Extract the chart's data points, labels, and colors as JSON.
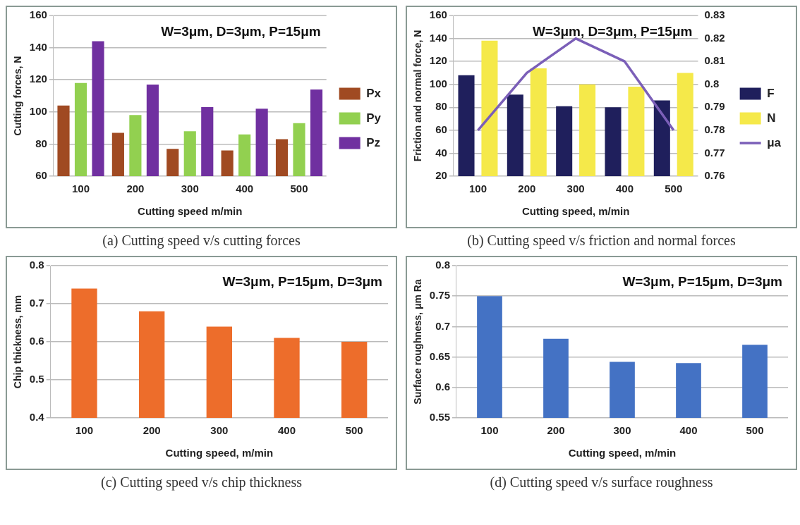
{
  "chart_data": [
    {
      "type": "bar",
      "xlabel": "Cutting speed m/min",
      "ylabel": "Cutting forces, N",
      "categories": [
        "100",
        "200",
        "300",
        "400",
        "500"
      ],
      "ylim": [
        60,
        160
      ],
      "yticks": [
        60,
        80,
        100,
        120,
        140,
        160
      ],
      "grid": "y",
      "legend": "right",
      "annotations": [
        "W=3μm, D=3μm, P=15μm",
        "(a) Cutting speed v/s cutting forces"
      ],
      "series": [
        {
          "name": "Px",
          "color": "#a04a22",
          "values": [
            104,
            87,
            77,
            76,
            83
          ]
        },
        {
          "name": "Py",
          "color": "#92d050",
          "values": [
            118,
            98,
            88,
            86,
            93
          ]
        },
        {
          "name": "Pz",
          "color": "#7030a0",
          "values": [
            144,
            117,
            103,
            102,
            114
          ]
        }
      ]
    },
    {
      "type": "bar",
      "xlabel": "Cutting speed, m/min",
      "ylabel": "Friction and normal force, N",
      "categories": [
        "100",
        "200",
        "300",
        "400",
        "500"
      ],
      "ylim": [
        20,
        160
      ],
      "yticks": [
        20,
        40,
        60,
        80,
        100,
        120,
        140,
        160
      ],
      "y2lim": [
        0.76,
        0.83
      ],
      "y2ticks": [
        0.76,
        0.77,
        0.78,
        0.79,
        0.8,
        0.81,
        0.82,
        0.83
      ],
      "grid": "y",
      "legend": "right",
      "annotations": [
        "W=3μm, D=3μm, P=15μm",
        "(b) Cutting speed v/s friction and normal forces"
      ],
      "series": [
        {
          "name": "F",
          "color": "#1f1f5c",
          "values": [
            108,
            91,
            81,
            80,
            86
          ]
        },
        {
          "name": "N",
          "color": "#f5e94a",
          "values": [
            138,
            114,
            100,
            98,
            110
          ]
        },
        {
          "name": "μa",
          "type": "line",
          "axis": "y2",
          "marker": "none",
          "line_style": "solid",
          "color": "#7b5fb8",
          "values": [
            0.78,
            0.805,
            0.82,
            0.81,
            0.78
          ]
        }
      ]
    },
    {
      "type": "bar",
      "xlabel": "Cutting speed, m/min",
      "ylabel": "Chip thickness, mm",
      "categories": [
        "100",
        "200",
        "300",
        "400",
        "500"
      ],
      "ylim": [
        0.4,
        0.8
      ],
      "yticks": [
        0.4,
        0.5,
        0.6,
        0.7,
        0.8
      ],
      "grid": "y",
      "annotations": [
        "W=3μm, P=15μm, D=3μm",
        "(c) Cutting speed v/s chip thickness"
      ],
      "color": "#ed6d2b",
      "values": [
        0.74,
        0.68,
        0.64,
        0.61,
        0.6
      ]
    },
    {
      "type": "bar",
      "xlabel": "Cutting speed, m/min",
      "ylabel": "Surface roughness, μm Ra",
      "categories": [
        "100",
        "200",
        "300",
        "400",
        "500"
      ],
      "ylim": [
        0.55,
        0.8
      ],
      "yticks": [
        0.55,
        0.6,
        0.65,
        0.7,
        0.75,
        0.8
      ],
      "grid": "y",
      "annotations": [
        "W=3μm, P=15μm, D=3μm",
        "(d) Cutting speed v/s surface roughness"
      ],
      "color": "#4472c4",
      "values": [
        0.75,
        0.68,
        0.642,
        0.64,
        0.67
      ]
    }
  ]
}
